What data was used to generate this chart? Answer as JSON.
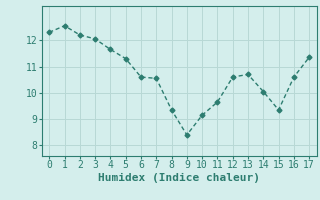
{
  "x": [
    0,
    1,
    2,
    3,
    4,
    5,
    6,
    7,
    8,
    9,
    10,
    11,
    12,
    13,
    14,
    15,
    16,
    17
  ],
  "y": [
    12.3,
    12.55,
    12.2,
    12.05,
    11.65,
    11.3,
    10.6,
    10.55,
    9.35,
    8.4,
    9.15,
    9.65,
    10.6,
    10.7,
    10.05,
    9.35,
    10.6,
    11.35
  ],
  "line_color": "#2d7d70",
  "marker": "D",
  "marker_size": 2.5,
  "bg_color": "#d4eeec",
  "grid_color": "#b8d8d5",
  "xlabel": "Humidex (Indice chaleur)",
  "ylim": [
    7.6,
    13.3
  ],
  "xlim": [
    -0.5,
    17.5
  ],
  "xticks": [
    0,
    1,
    2,
    3,
    4,
    5,
    6,
    7,
    8,
    9,
    10,
    11,
    12,
    13,
    14,
    15,
    16,
    17
  ],
  "yticks": [
    8,
    9,
    10,
    11,
    12
  ],
  "tick_fontsize": 7,
  "xlabel_fontsize": 8,
  "line_width": 1.0
}
